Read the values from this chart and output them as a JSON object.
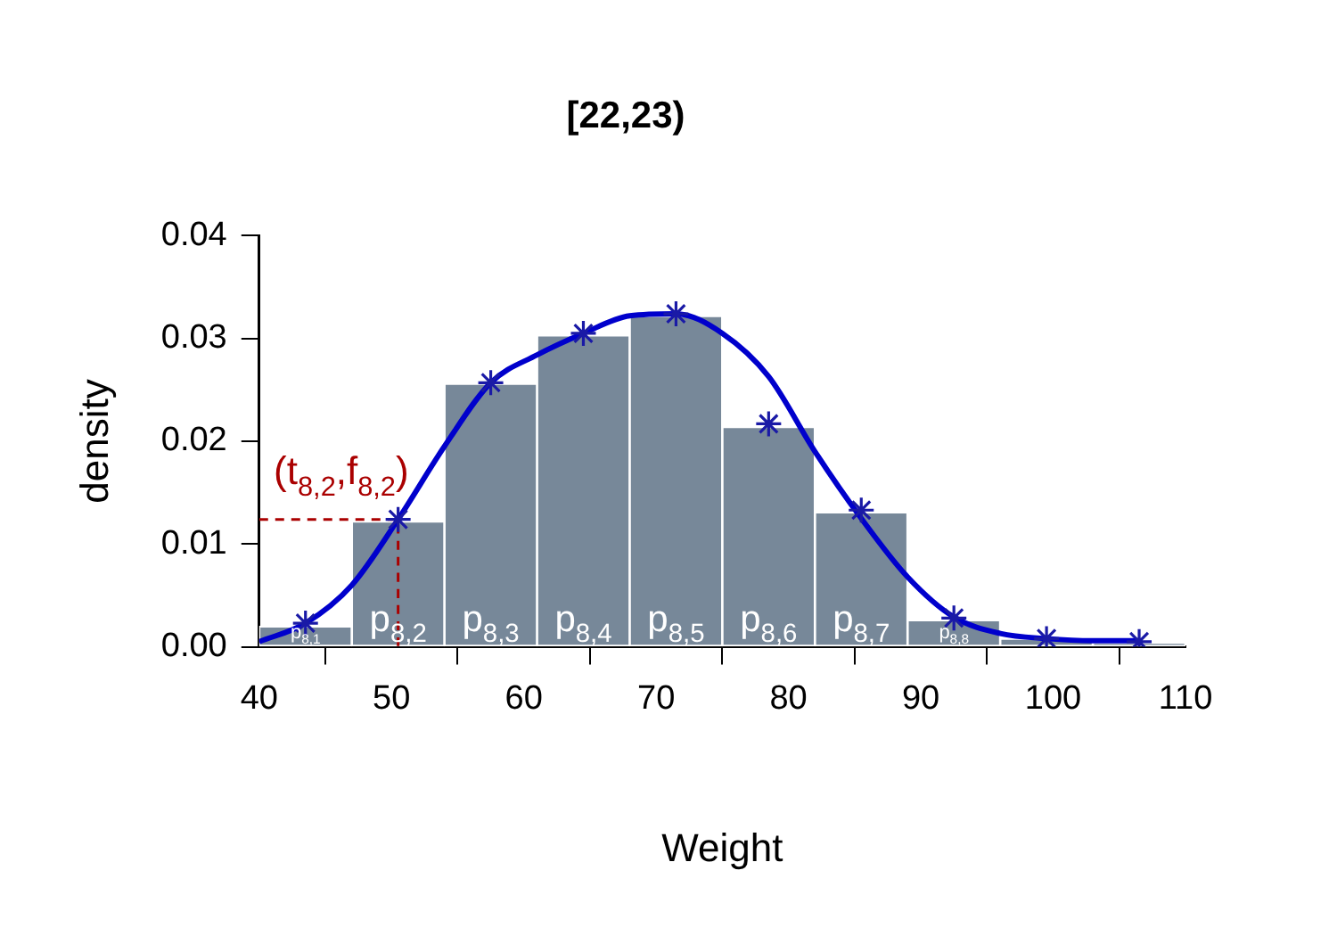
{
  "chart_data": {
    "type": "histogram",
    "title": "[22,23)",
    "xlabel": "Weight",
    "ylabel": "density",
    "bins": [
      40,
      47,
      54,
      61,
      68,
      75,
      82,
      89,
      96,
      103,
      110
    ],
    "values": [
      0.002,
      0.0122,
      0.0256,
      0.0303,
      0.0322,
      0.0214,
      0.0131,
      0.0026,
      0.0008,
      0.0004
    ],
    "color": "#778899",
    "series": [
      {
        "type": "line",
        "color": "#0000cc",
        "marker": "none",
        "line_style": "solid",
        "x": [
          40,
          43.5,
          47,
          50.5,
          54,
          57.5,
          61,
          64.5,
          68,
          71.5,
          75,
          78.5,
          82,
          85.5,
          89,
          92.5,
          96,
          99.5,
          103,
          106.5
        ],
        "values": [
          0.0005,
          0.0023,
          0.006,
          0.0124,
          0.0195,
          0.0257,
          0.0284,
          0.0305,
          0.0322,
          0.0324,
          0.0305,
          0.0263,
          0.019,
          0.0125,
          0.0068,
          0.0029,
          0.0013,
          0.0008,
          0.0006,
          0.0006
        ]
      },
      {
        "type": "scatter",
        "color": "#1a1aa6",
        "marker": "cross",
        "x": [
          43.5,
          50.5,
          57.5,
          64.5,
          71.5,
          78.5,
          85.5,
          92.5,
          99.5,
          106.5
        ],
        "values": [
          0.0023,
          0.0124,
          0.0257,
          0.0305,
          0.0324,
          0.0217,
          0.0133,
          0.0028,
          0.0008,
          0.0005
        ]
      },
      {
        "type": "line",
        "color": "#aa0000",
        "marker": "none",
        "line_style": "dashed",
        "x": [
          40,
          50.5,
          50.5
        ],
        "values": [
          0.0124,
          0.0124,
          0
        ]
      }
    ],
    "annotations": [
      {
        "text": "(t$_{8,2}$,f$_{8,2}$)",
        "x": 50.5,
        "y": 0.0124
      },
      {
        "text": "p$_{8,1}$",
        "x": 43.5,
        "y": 0
      },
      {
        "text": "p$_{8,2}$",
        "x": 50.5,
        "y": 0
      },
      {
        "text": "p$_{8,3}$",
        "x": 57.5,
        "y": 0
      },
      {
        "text": "p$_{8,4}$",
        "x": 64.5,
        "y": 0
      },
      {
        "text": "p$_{8,5}$",
        "x": 71.5,
        "y": 0
      },
      {
        "text": "p$_{8,6}$",
        "x": 78.5,
        "y": 0
      },
      {
        "text": "p$_{8,7}$",
        "x": 85.5,
        "y": 0
      },
      {
        "text": "p$_{8,8}$",
        "x": 92.5,
        "y": 0
      }
    ],
    "xlim": [
      40,
      110
    ],
    "xticks": [
      40,
      50,
      60,
      70,
      80,
      90,
      100,
      110
    ],
    "ylim": [
      0,
      0.04
    ],
    "yticks": [
      {
        "value": 0,
        "label": "0.00"
      },
      {
        "value": 0.01,
        "label": "0.01"
      },
      {
        "value": 0.02,
        "label": "0.02"
      },
      {
        "value": 0.03,
        "label": "0.03"
      },
      {
        "value": 0.04,
        "label": "0.04"
      }
    ],
    "grid": false,
    "legend": false
  }
}
